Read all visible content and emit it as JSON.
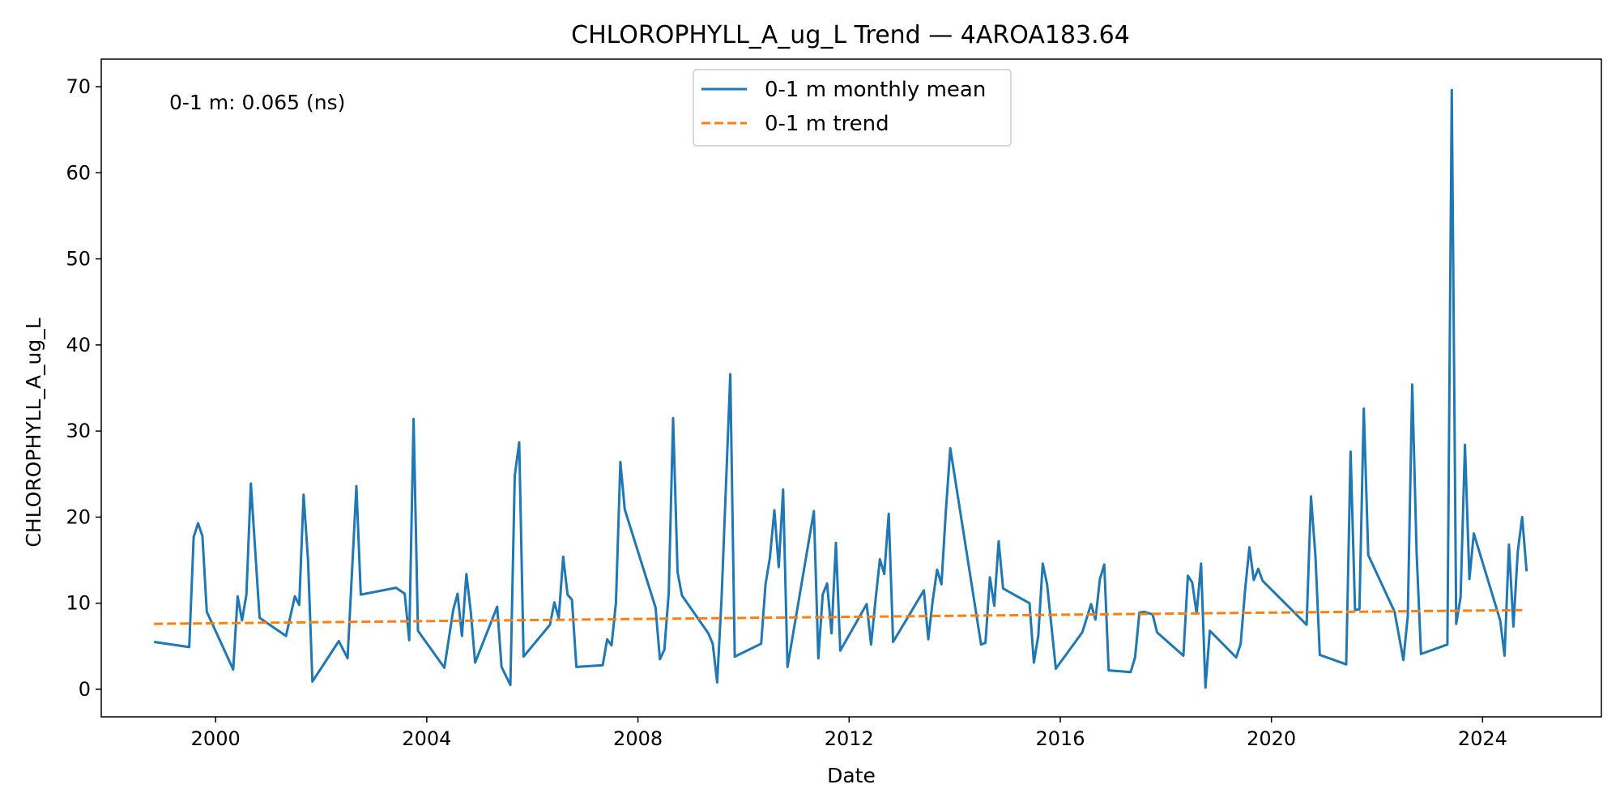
{
  "chart_data": {
    "type": "line",
    "title": "CHLOROPHYLL_A_ug_L Trend — 4AROA183.64",
    "xlabel": "Date",
    "ylabel": "CHLOROPHYLL_A_ug_L",
    "xlim": [
      "1997-11-01",
      "2026-04-01"
    ],
    "ylim": [
      -3.2,
      73.2
    ],
    "x_ticks": [
      "2000",
      "2004",
      "2008",
      "2012",
      "2016",
      "2020",
      "2024"
    ],
    "y_ticks": [
      0,
      10,
      20,
      30,
      40,
      50,
      60,
      70
    ],
    "annotation": "0-1 m: 0.065 (ns)",
    "legend_position": "upper center",
    "grid": false,
    "series": [
      {
        "name": "0-1 m monthly mean",
        "style": "solid",
        "color": "#1f77b4",
        "points": [
          [
            "1998-11",
            5.5
          ],
          [
            "1999-07",
            4.9
          ],
          [
            "1999-08",
            17.7
          ],
          [
            "1999-09",
            19.3
          ],
          [
            "1999-10",
            17.8
          ],
          [
            "1999-11",
            9.0
          ],
          [
            "2000-05",
            2.3
          ],
          [
            "2000-06",
            10.8
          ],
          [
            "2000-07",
            8.0
          ],
          [
            "2000-08",
            11.0
          ],
          [
            "2000-09",
            23.9
          ],
          [
            "2000-11",
            8.3
          ],
          [
            "2001-05",
            6.2
          ],
          [
            "2001-07",
            10.8
          ],
          [
            "2001-08",
            9.8
          ],
          [
            "2001-09",
            22.6
          ],
          [
            "2001-10",
            15.0
          ],
          [
            "2001-11",
            0.9
          ],
          [
            "2002-05",
            5.6
          ],
          [
            "2002-07",
            3.6
          ],
          [
            "2002-09",
            23.6
          ],
          [
            "2002-10",
            11.0
          ],
          [
            "2003-06",
            11.8
          ],
          [
            "2003-08",
            11.1
          ],
          [
            "2003-09",
            5.7
          ],
          [
            "2003-10",
            31.4
          ],
          [
            "2003-11",
            6.8
          ],
          [
            "2004-05",
            2.5
          ],
          [
            "2004-07",
            9.2
          ],
          [
            "2004-08",
            11.1
          ],
          [
            "2004-09",
            6.2
          ],
          [
            "2004-10",
            13.4
          ],
          [
            "2004-11",
            9.0
          ],
          [
            "2004-12",
            3.1
          ],
          [
            "2005-05",
            9.6
          ],
          [
            "2005-06",
            2.6
          ],
          [
            "2005-08",
            0.5
          ],
          [
            "2005-09",
            24.8
          ],
          [
            "2005-10",
            28.7
          ],
          [
            "2005-11",
            3.8
          ],
          [
            "2006-05",
            7.5
          ],
          [
            "2006-06",
            10.1
          ],
          [
            "2006-07",
            8.3
          ],
          [
            "2006-08",
            15.4
          ],
          [
            "2006-09",
            11.0
          ],
          [
            "2006-10",
            10.4
          ],
          [
            "2006-11",
            2.6
          ],
          [
            "2007-05",
            2.8
          ],
          [
            "2007-06",
            5.8
          ],
          [
            "2007-07",
            5.1
          ],
          [
            "2007-08",
            10.0
          ],
          [
            "2007-09",
            26.4
          ],
          [
            "2007-10",
            20.9
          ],
          [
            "2008-05",
            9.5
          ],
          [
            "2008-06",
            3.5
          ],
          [
            "2008-07",
            4.6
          ],
          [
            "2008-08",
            11.2
          ],
          [
            "2008-09",
            31.5
          ],
          [
            "2008-10",
            13.6
          ],
          [
            "2008-11",
            10.9
          ],
          [
            "2009-05",
            6.5
          ],
          [
            "2009-06",
            5.3
          ],
          [
            "2009-07",
            0.8
          ],
          [
            "2009-08",
            10.5
          ],
          [
            "2009-10",
            36.6
          ],
          [
            "2009-11",
            3.8
          ],
          [
            "2010-05",
            5.3
          ],
          [
            "2010-06",
            12.2
          ],
          [
            "2010-07",
            15.3
          ],
          [
            "2010-08",
            20.8
          ],
          [
            "2010-09",
            14.2
          ],
          [
            "2010-10",
            23.2
          ],
          [
            "2010-11",
            2.6
          ],
          [
            "2011-05",
            20.7
          ],
          [
            "2011-06",
            3.6
          ],
          [
            "2011-07",
            11.0
          ],
          [
            "2011-08",
            12.3
          ],
          [
            "2011-09",
            6.5
          ],
          [
            "2011-10",
            17.0
          ],
          [
            "2011-11",
            4.5
          ],
          [
            "2012-05",
            9.9
          ],
          [
            "2012-06",
            5.2
          ],
          [
            "2012-07",
            10.4
          ],
          [
            "2012-08",
            15.1
          ],
          [
            "2012-09",
            13.4
          ],
          [
            "2012-10",
            20.4
          ],
          [
            "2012-11",
            5.5
          ],
          [
            "2013-06",
            11.5
          ],
          [
            "2013-07",
            5.8
          ],
          [
            "2013-08",
            10.3
          ],
          [
            "2013-09",
            13.9
          ],
          [
            "2013-10",
            12.2
          ],
          [
            "2013-11",
            20.8
          ],
          [
            "2013-12",
            28.0
          ],
          [
            "2014-07",
            5.2
          ],
          [
            "2014-08",
            5.4
          ],
          [
            "2014-09",
            13.0
          ],
          [
            "2014-10",
            9.7
          ],
          [
            "2014-11",
            17.2
          ],
          [
            "2014-12",
            11.7
          ],
          [
            "2015-06",
            10.0
          ],
          [
            "2015-07",
            3.1
          ],
          [
            "2015-08",
            6.2
          ],
          [
            "2015-09",
            14.6
          ],
          [
            "2015-10",
            12.2
          ],
          [
            "2015-12",
            2.4
          ],
          [
            "2016-06",
            6.6
          ],
          [
            "2016-08",
            9.9
          ],
          [
            "2016-09",
            8.1
          ],
          [
            "2016-10",
            12.8
          ],
          [
            "2016-11",
            14.5
          ],
          [
            "2016-12",
            2.2
          ],
          [
            "2017-05",
            2.0
          ],
          [
            "2017-06",
            3.7
          ],
          [
            "2017-07",
            8.9
          ],
          [
            "2017-08",
            9.0
          ],
          [
            "2017-10",
            8.7
          ],
          [
            "2017-11",
            6.6
          ],
          [
            "2018-05",
            3.9
          ],
          [
            "2018-06",
            13.2
          ],
          [
            "2018-07",
            12.4
          ],
          [
            "2018-08",
            8.8
          ],
          [
            "2018-09",
            14.6
          ],
          [
            "2018-10",
            0.2
          ],
          [
            "2018-11",
            6.8
          ],
          [
            "2019-05",
            3.7
          ],
          [
            "2019-06",
            5.3
          ],
          [
            "2019-07",
            11.5
          ],
          [
            "2019-08",
            16.5
          ],
          [
            "2019-09",
            12.7
          ],
          [
            "2019-10",
            14.0
          ],
          [
            "2019-11",
            12.6
          ],
          [
            "2020-09",
            7.5
          ],
          [
            "2020-10",
            22.4
          ],
          [
            "2020-11",
            15.5
          ],
          [
            "2020-12",
            4.0
          ],
          [
            "2021-06",
            2.9
          ],
          [
            "2021-07",
            27.6
          ],
          [
            "2021-08",
            9.2
          ],
          [
            "2021-09",
            9.3
          ],
          [
            "2021-10",
            32.6
          ],
          [
            "2021-11",
            15.6
          ],
          [
            "2022-05",
            9.0
          ],
          [
            "2022-07",
            3.4
          ],
          [
            "2022-08",
            8.5
          ],
          [
            "2022-09",
            35.4
          ],
          [
            "2022-10",
            15.9
          ],
          [
            "2022-11",
            4.1
          ],
          [
            "2023-05",
            5.2
          ],
          [
            "2023-06",
            69.6
          ],
          [
            "2023-07",
            7.6
          ],
          [
            "2023-08",
            10.7
          ],
          [
            "2023-09",
            28.4
          ],
          [
            "2023-10",
            12.8
          ],
          [
            "2023-11",
            18.1
          ],
          [
            "2024-05",
            8.0
          ],
          [
            "2024-06",
            3.9
          ],
          [
            "2024-07",
            16.8
          ],
          [
            "2024-08",
            7.3
          ],
          [
            "2024-09",
            16.0
          ],
          [
            "2024-10",
            20.0
          ],
          [
            "2024-11",
            13.7
          ]
        ]
      },
      {
        "name": "0-1 m trend",
        "style": "dashed",
        "color": "#ff7f0e",
        "points": [
          [
            "1998-11",
            7.6
          ],
          [
            "2024-10",
            9.2
          ]
        ]
      }
    ]
  }
}
